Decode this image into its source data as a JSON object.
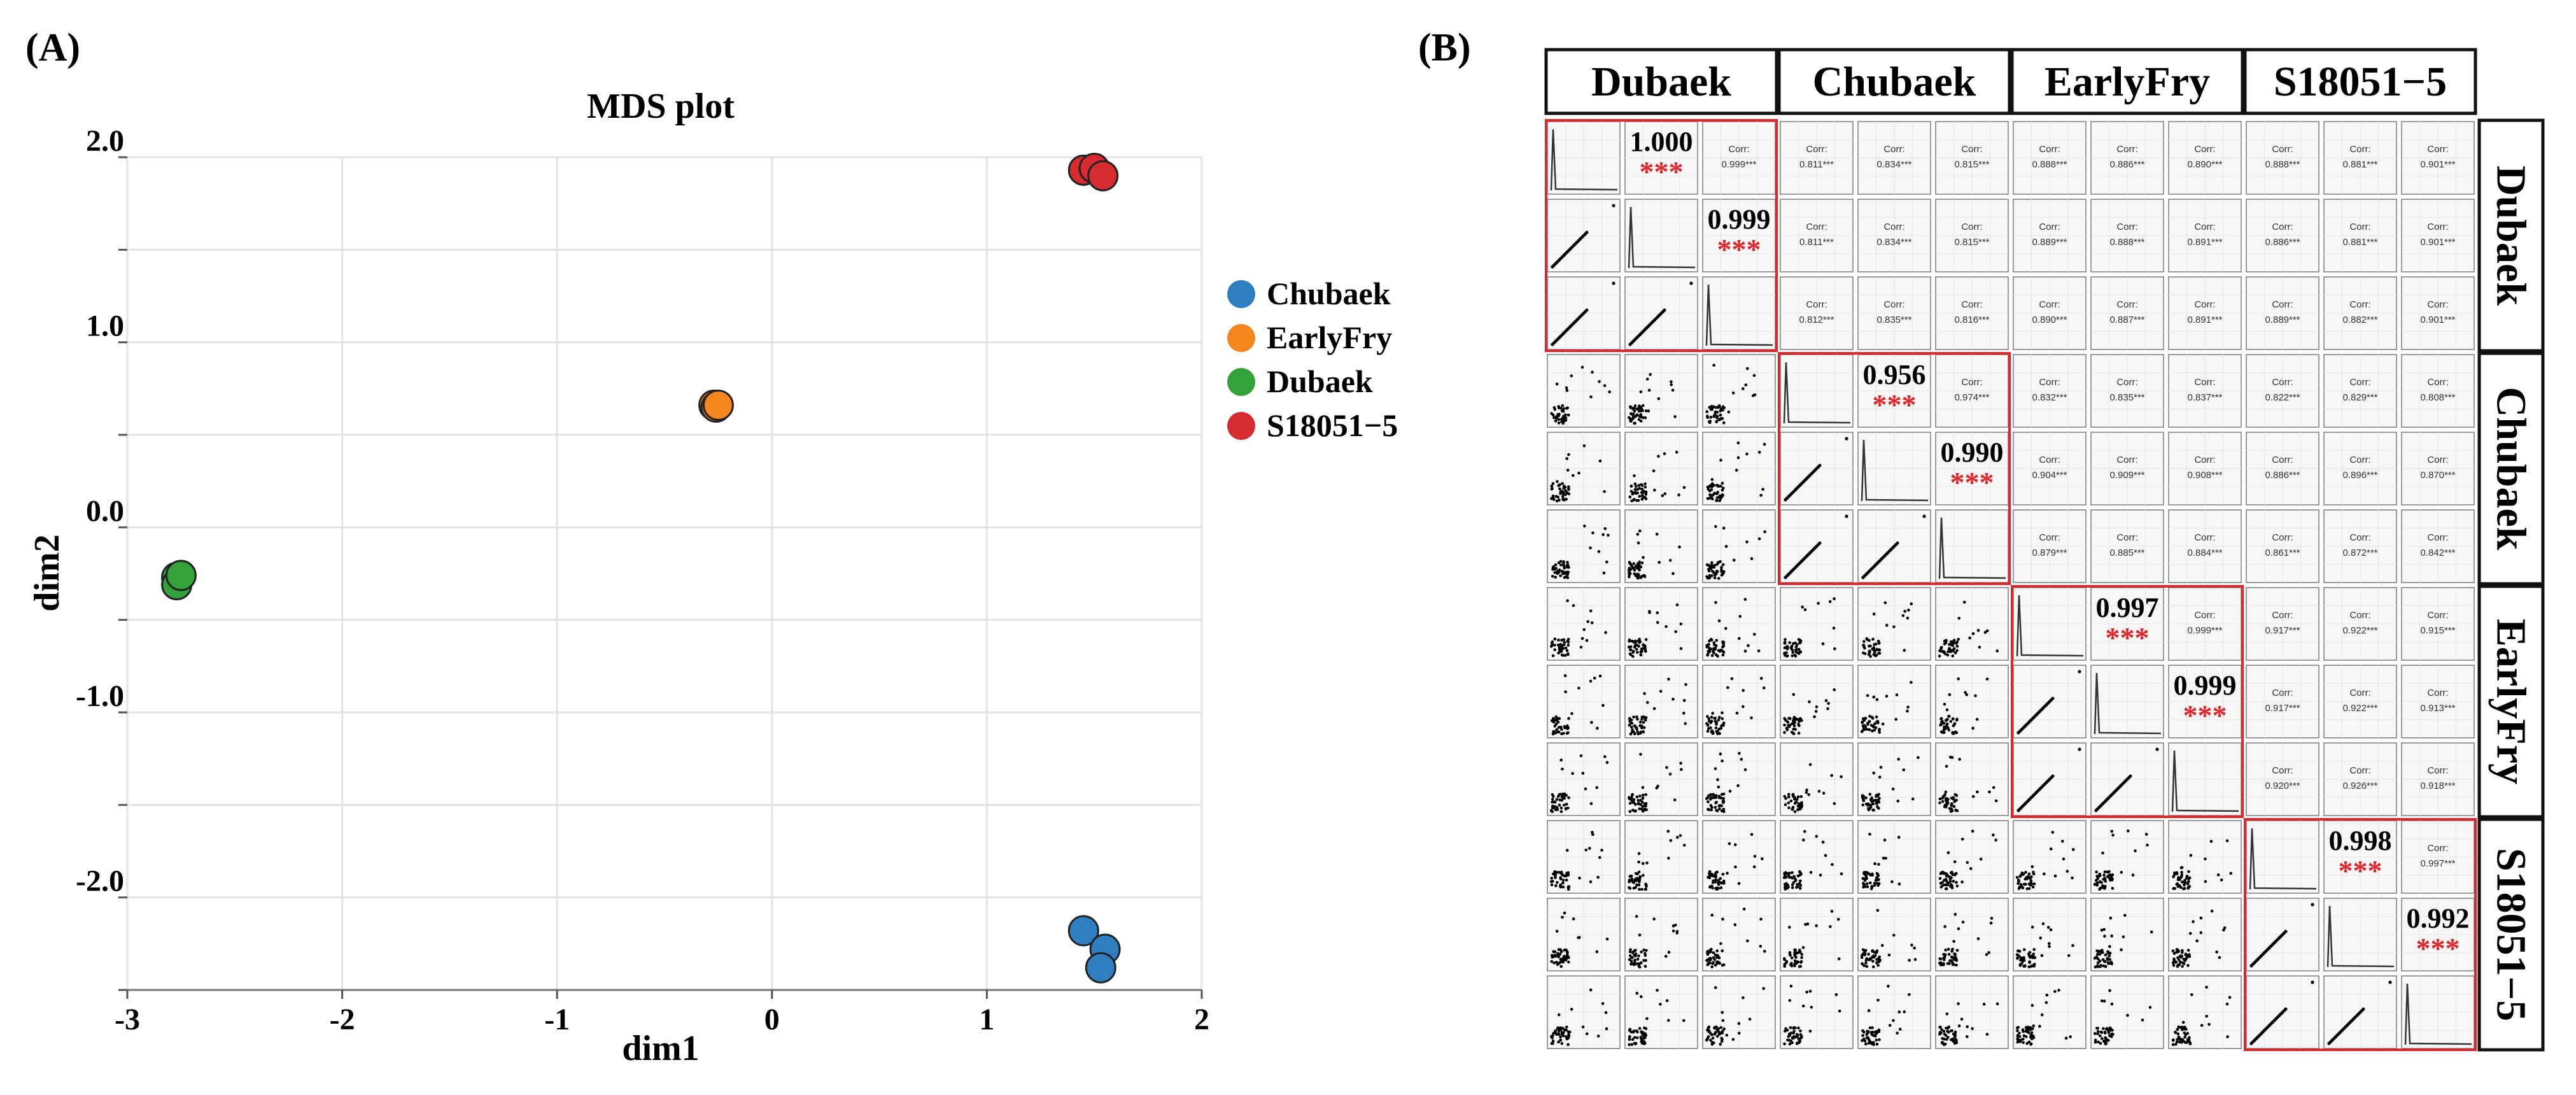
{
  "panel_a_label": "(A)",
  "panel_b_label": "(B)",
  "chart_data": [
    {
      "type": "scatter",
      "title": "MDS plot",
      "xlabel": "dim1",
      "ylabel": "dim2",
      "xlim": [
        -3,
        2
      ],
      "ylim": [
        -2.5,
        2.0
      ],
      "x_ticks": [
        {
          "v": -3,
          "label": "-3"
        },
        {
          "v": -2,
          "label": "-2"
        },
        {
          "v": -1,
          "label": "-1"
        },
        {
          "v": 0,
          "label": "0"
        },
        {
          "v": 1,
          "label": "1"
        },
        {
          "v": 2,
          "label": "2"
        }
      ],
      "y_ticks": [
        {
          "v": 2.0,
          "label": "2.0"
        },
        {
          "v": 1.0,
          "label": "1.0"
        },
        {
          "v": 0.0,
          "label": "0.0"
        },
        {
          "v": -1.0,
          "label": "-1.0"
        },
        {
          "v": -2.0,
          "label": "-2.0"
        }
      ],
      "grid": true,
      "legend_position": "right",
      "series": [
        {
          "name": "Chubaek",
          "color": "#2f7ebf",
          "points": [
            [
              1.45,
              -2.18
            ],
            [
              1.55,
              -2.28
            ],
            [
              1.53,
              -2.38
            ]
          ]
        },
        {
          "name": "EarlyFry",
          "color": "#f5851f",
          "points": [
            [
              -0.27,
              0.66
            ],
            [
              -0.26,
              0.65
            ],
            [
              -0.25,
              0.66
            ]
          ]
        },
        {
          "name": "Dubaek",
          "color": "#34a13a",
          "points": [
            [
              -2.77,
              -0.27
            ],
            [
              -2.77,
              -0.31
            ],
            [
              -2.75,
              -0.26
            ]
          ]
        },
        {
          "name": "S18051−5",
          "color": "#d62b30",
          "points": [
            [
              1.45,
              1.93
            ],
            [
              1.5,
              1.94
            ],
            [
              1.54,
              1.9
            ]
          ]
        }
      ]
    },
    {
      "type": "heatmap",
      "subtype": "correlation-pairs-matrix",
      "groups": [
        "Dubaek",
        "Chubaek",
        "EarlyFry",
        "S18051−5"
      ],
      "corr_label": "Corr:",
      "significance": "***",
      "within_group_corr": [
        {
          "row": 0,
          "col": 1,
          "value": "1.000"
        },
        {
          "row": 0,
          "col": 2,
          "value": "0.999"
        },
        {
          "row": 1,
          "col": 2,
          "value": "0.999"
        },
        {
          "row": 3,
          "col": 4,
          "value": "0.956"
        },
        {
          "row": 3,
          "col": 5,
          "value": "0.974"
        },
        {
          "row": 4,
          "col": 5,
          "value": "0.990"
        },
        {
          "row": 6,
          "col": 7,
          "value": "0.997"
        },
        {
          "row": 6,
          "col": 8,
          "value": "0.999"
        },
        {
          "row": 7,
          "col": 8,
          "value": "0.999"
        },
        {
          "row": 9,
          "col": 10,
          "value": "0.998"
        },
        {
          "row": 9,
          "col": 11,
          "value": "0.997"
        },
        {
          "row": 10,
          "col": 11,
          "value": "0.992"
        }
      ],
      "large_labels": [
        {
          "row": 0,
          "col": 1
        },
        {
          "row": 1,
          "col": 2
        },
        {
          "row": 3,
          "col": 4
        },
        {
          "row": 4,
          "col": 5
        },
        {
          "row": 6,
          "col": 7
        },
        {
          "row": 7,
          "col": 8
        },
        {
          "row": 9,
          "col": 10
        },
        {
          "row": 10,
          "col": 11
        }
      ],
      "upper_values": [
        [
          null,
          null,
          null,
          "0.811",
          "0.834",
          "0.815",
          "0.888",
          "0.886",
          "0.890",
          "0.888",
          "0.881",
          "0.901"
        ],
        [
          null,
          null,
          null,
          "0.811",
          "0.834",
          "0.815",
          "0.889",
          "0.888",
          "0.891",
          "0.886",
          "0.881",
          "0.901"
        ],
        [
          null,
          null,
          null,
          "0.812",
          "0.835",
          "0.816",
          "0.890",
          "0.887",
          "0.891",
          "0.889",
          "0.882",
          "0.901"
        ],
        [
          null,
          null,
          null,
          null,
          null,
          null,
          "0.832",
          "0.835",
          "0.837",
          "0.822",
          "0.829",
          "0.808"
        ],
        [
          null,
          null,
          null,
          null,
          null,
          null,
          "0.904",
          "0.909",
          "0.908",
          "0.886",
          "0.896",
          "0.870"
        ],
        [
          null,
          null,
          null,
          null,
          null,
          null,
          "0.879",
          "0.885",
          "0.884",
          "0.861",
          "0.872",
          "0.842"
        ],
        [
          null,
          null,
          null,
          null,
          null,
          null,
          null,
          null,
          null,
          "0.917",
          "0.922",
          "0.915"
        ],
        [
          null,
          null,
          null,
          null,
          null,
          null,
          null,
          null,
          null,
          "0.917",
          "0.922",
          "0.913"
        ],
        [
          null,
          null,
          null,
          null,
          null,
          null,
          null,
          null,
          null,
          "0.920",
          "0.926",
          "0.918"
        ],
        [
          null,
          null,
          null,
          null,
          null,
          null,
          null,
          null,
          null,
          null,
          null,
          null
        ],
        [
          null,
          null,
          null,
          null,
          null,
          null,
          null,
          null,
          null,
          null,
          null,
          null
        ],
        [
          null,
          null,
          null,
          null,
          null,
          null,
          null,
          null,
          null,
          null,
          null,
          null
        ]
      ]
    }
  ]
}
